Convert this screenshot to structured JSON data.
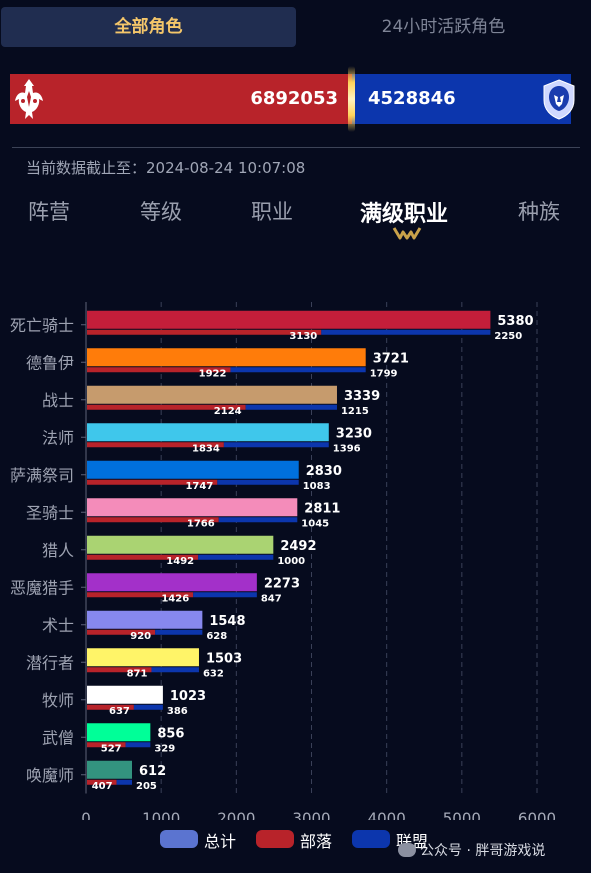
{
  "top_tabs": [
    {
      "label": "全部角色",
      "active": true
    },
    {
      "label": "24小时活跃角色",
      "active": false
    }
  ],
  "faction_totals": {
    "horde": "6892053",
    "alliance": "4528846",
    "horde_color": "#b8232a",
    "alliance_color": "#0c36ad"
  },
  "timestamp": "当前数据截止至：2024-08-24 10:07:08",
  "nav_tabs": [
    {
      "label": "阵营",
      "active": false
    },
    {
      "label": "等级",
      "active": false
    },
    {
      "label": "职业",
      "active": false
    },
    {
      "label": "满级职业",
      "active": true
    },
    {
      "label": "种族",
      "active": false
    }
  ],
  "chart_data": {
    "type": "bar",
    "orientation": "horizontal",
    "categories": [
      "死亡骑士",
      "德鲁伊",
      "战士",
      "法师",
      "萨满祭司",
      "圣骑士",
      "猎人",
      "恶魔猎手",
      "术士",
      "潜行者",
      "牧师",
      "武僧",
      "唤魔师"
    ],
    "category_colors": [
      "#c41e3a",
      "#ff7c0a",
      "#c69b6d",
      "#3fc7eb",
      "#0070dd",
      "#f48cba",
      "#aad372",
      "#a330c9",
      "#8788ee",
      "#fff468",
      "#ffffff",
      "#00ff98",
      "#33937f"
    ],
    "series": [
      {
        "name": "总计",
        "color": "#5b74d0",
        "values": [
          5380,
          3721,
          3339,
          3230,
          2830,
          2811,
          2492,
          2273,
          1548,
          1503,
          1023,
          856,
          612
        ]
      },
      {
        "name": "部落",
        "color": "#b8232a",
        "values": [
          3130,
          1922,
          2124,
          1834,
          1747,
          1766,
          1492,
          1426,
          920,
          871,
          637,
          527,
          407
        ]
      },
      {
        "name": "联盟",
        "color": "#0c36ad",
        "values": [
          2250,
          1799,
          1215,
          1396,
          1083,
          1045,
          1000,
          847,
          628,
          632,
          386,
          329,
          205
        ]
      }
    ],
    "xlim": [
      0,
      6000
    ],
    "xticks": [
      0,
      1000,
      2000,
      3000,
      4000,
      5000,
      6000
    ],
    "grid": true,
    "legend_position": "bottom"
  },
  "watermark": "公众号 · 胖哥游戏说"
}
